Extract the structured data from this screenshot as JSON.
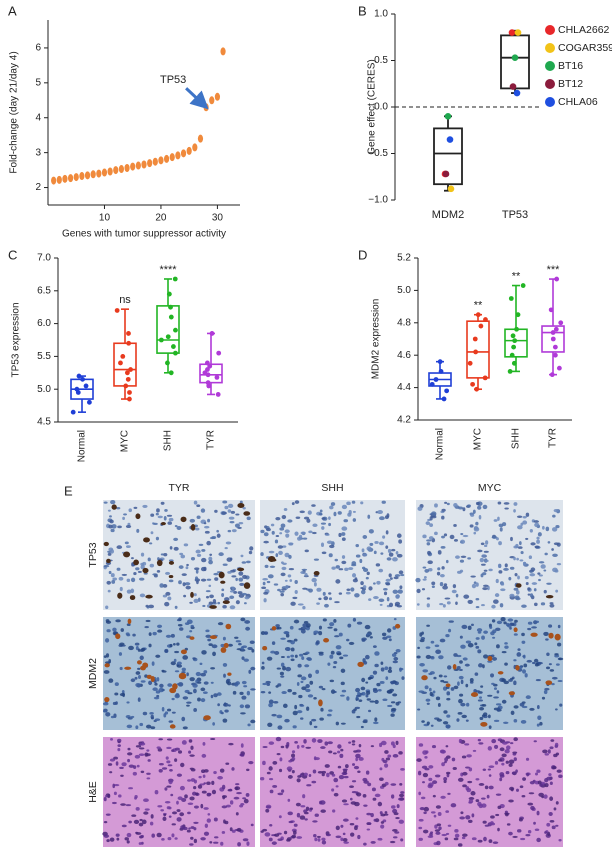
{
  "chart_data": [
    {
      "type": "scatter",
      "panel": "A",
      "xlabel": "Genes with tumor suppressor activity",
      "ylabel": "Fold-change (day 21/day 4)",
      "color": "#f08a3c",
      "x": [
        1,
        2,
        3,
        4,
        5,
        6,
        7,
        8,
        9,
        10,
        11,
        12,
        13,
        14,
        15,
        16,
        17,
        18,
        19,
        20,
        21,
        22,
        23,
        24,
        25,
        26,
        27,
        28,
        29,
        30,
        31
      ],
      "values": [
        2.2,
        2.22,
        2.25,
        2.27,
        2.3,
        2.33,
        2.35,
        2.38,
        2.4,
        2.43,
        2.46,
        2.5,
        2.53,
        2.56,
        2.6,
        2.63,
        2.66,
        2.7,
        2.74,
        2.78,
        2.82,
        2.87,
        2.92,
        2.98,
        3.05,
        3.15,
        3.4,
        4.3,
        4.5,
        4.6,
        5.9
      ],
      "xlim": [
        0,
        34
      ],
      "xticks": [
        10,
        20,
        30
      ],
      "ylim": [
        1.5,
        6.8
      ],
      "yticks": [
        2,
        3,
        4,
        5,
        6
      ],
      "annotation": {
        "text": "TP53",
        "index": 27
      }
    },
    {
      "type": "box",
      "panel": "B",
      "ylabel": "Gene effect (CERES)",
      "categories": [
        "MDM2",
        "TP53"
      ],
      "box_color": "#222222",
      "boxes": [
        {
          "min": -0.9,
          "q1": -0.83,
          "median": -0.5,
          "q3": -0.23,
          "max": -0.1
        },
        {
          "min": 0.15,
          "q1": 0.2,
          "median": 0.53,
          "q3": 0.77,
          "max": 0.82
        }
      ],
      "series": [
        {
          "name": "CHLA2662",
          "color": "#e8272a",
          "values": [
            -0.72,
            0.8
          ]
        },
        {
          "name": "COGAR359",
          "color": "#f2c318",
          "values": [
            -0.88,
            0.8
          ]
        },
        {
          "name": "BT16",
          "color": "#1fa84f",
          "values": [
            -0.1,
            0.53
          ]
        },
        {
          "name": "BT12",
          "color": "#8b1c3c",
          "values": [
            -0.72,
            0.22
          ]
        },
        {
          "name": "CHLA06",
          "color": "#1f4fe0",
          "values": [
            -0.35,
            0.15
          ]
        }
      ],
      "ylim": [
        -1,
        1
      ],
      "yticks": [
        {
          "value": -1,
          "label": "−1.0"
        },
        {
          "value": -0.5,
          "label": "−0.5"
        },
        {
          "value": 0,
          "label": "0.0"
        },
        0.5,
        {
          "value": 1,
          "label": "1.0"
        }
      ],
      "hline": 0
    },
    {
      "type": "box",
      "panel": "C",
      "ylabel": "TP53 expression",
      "categories": [
        "Normal",
        "MYC",
        "SHH",
        "TYR"
      ],
      "colors": [
        "#1f3fd6",
        "#e83a1e",
        "#22b524",
        "#b03ad8"
      ],
      "boxes": [
        {
          "min": 4.65,
          "q1": 4.85,
          "median": 5.0,
          "q3": 5.15,
          "max": 5.2
        },
        {
          "min": 4.85,
          "q1": 5.05,
          "median": 5.3,
          "q3": 5.7,
          "max": 6.22
        },
        {
          "min": 5.25,
          "q1": 5.55,
          "median": 5.75,
          "q3": 6.27,
          "max": 6.68
        },
        {
          "min": 4.92,
          "q1": 5.1,
          "median": 5.22,
          "q3": 5.38,
          "max": 5.85
        }
      ],
      "points": [
        [
          4.65,
          4.8,
          4.95,
          5.0,
          5.05,
          5.15,
          5.2
        ],
        [
          4.85,
          4.95,
          5.05,
          5.15,
          5.25,
          5.3,
          5.4,
          5.5,
          5.7,
          5.85,
          6.2
        ],
        [
          5.25,
          5.4,
          5.55,
          5.65,
          5.75,
          5.8,
          5.9,
          6.1,
          6.25,
          6.45,
          6.68
        ],
        [
          4.92,
          5.05,
          5.1,
          5.18,
          5.22,
          5.25,
          5.3,
          5.35,
          5.4,
          5.55,
          5.85
        ]
      ],
      "annotations": [
        null,
        "ns",
        "****",
        null
      ],
      "ylim": [
        4.5,
        7.0
      ],
      "yticks": [
        4.5,
        {
          "value": 5,
          "label": "5.0"
        },
        5.5,
        {
          "value": 6,
          "label": "6.0"
        },
        6.5,
        {
          "value": 7,
          "label": "7.0"
        }
      ]
    },
    {
      "type": "box",
      "panel": "D",
      "ylabel": "MDM2 expression",
      "categories": [
        "Normal",
        "MYC",
        "SHH",
        "TYR"
      ],
      "colors": [
        "#1f3fd6",
        "#e83a1e",
        "#22b524",
        "#b03ad8"
      ],
      "boxes": [
        {
          "min": 4.33,
          "q1": 4.41,
          "median": 4.45,
          "q3": 4.49,
          "max": 4.56
        },
        {
          "min": 4.39,
          "q1": 4.46,
          "median": 4.62,
          "q3": 4.81,
          "max": 4.85
        },
        {
          "min": 4.5,
          "q1": 4.59,
          "median": 4.69,
          "q3": 4.76,
          "max": 5.03
        },
        {
          "min": 4.48,
          "q1": 4.62,
          "median": 4.74,
          "q3": 4.78,
          "max": 5.07
        }
      ],
      "points": [
        [
          4.33,
          4.38,
          4.42,
          4.45,
          4.5,
          4.56
        ],
        [
          4.39,
          4.42,
          4.46,
          4.55,
          4.62,
          4.7,
          4.78,
          4.82,
          4.85
        ],
        [
          4.5,
          4.55,
          4.6,
          4.65,
          4.69,
          4.72,
          4.76,
          4.85,
          4.95,
          5.03
        ],
        [
          4.48,
          4.52,
          4.6,
          4.65,
          4.7,
          4.74,
          4.76,
          4.8,
          4.88,
          5.07
        ]
      ],
      "annotations": [
        null,
        "**",
        "**",
        "***"
      ],
      "ylim": [
        4.2,
        5.2
      ],
      "yticks": [
        4.2,
        4.4,
        4.6,
        4.8,
        {
          "value": 5,
          "label": "5.0"
        },
        5.2
      ]
    }
  ],
  "figure_e": {
    "panel": "E",
    "columns": [
      "TYR",
      "SHH",
      "MYC"
    ],
    "rows": [
      "TP53",
      "MDM2",
      "H&E"
    ]
  }
}
